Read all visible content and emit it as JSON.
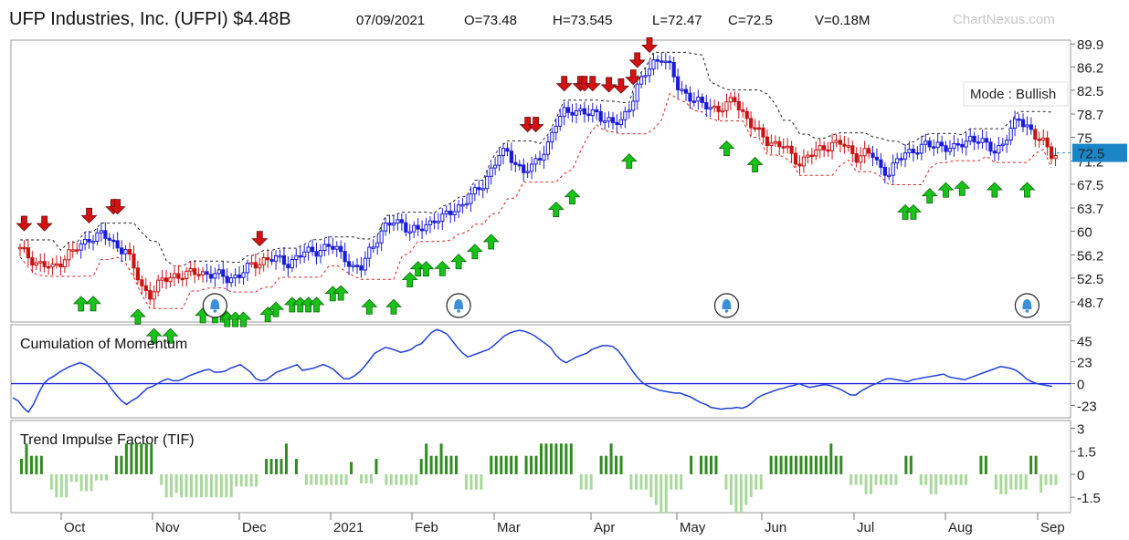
{
  "header": {
    "title": "UFP Industries, Inc. (UFPI) $4.48B",
    "date": "07/09/2021",
    "open": "O=73.48",
    "high": "H=73.545",
    "low": "L=72.47",
    "close": "C=72.5",
    "volume": "V=0.18M",
    "watermark": "ChartNexus.com"
  },
  "colors": {
    "bullish": "#1c1cd6",
    "bearish": "#c81414",
    "up_arrow": "#19c219",
    "down_arrow": "#d41212",
    "tif_strong": "#2e8b1e",
    "tif_light": "#a8d89a",
    "momentum_line": "#1f3fd8",
    "price_tag": "#1a86c8"
  },
  "chart_data": [
    {
      "type": "candlestick",
      "title": "",
      "ylim": [
        45.5,
        90.5
      ],
      "y_ticks": [
        "89.9",
        "86.2",
        "82.5",
        "78.7",
        "75",
        "71.2",
        "67.5",
        "63.7",
        "60",
        "56.2",
        "52.5",
        "48.7"
      ],
      "last_price_label": "72.5",
      "mode_label": "Mode : Bullish",
      "x_months": [
        "Oct",
        "Nov",
        "Dec",
        "2021",
        "Feb",
        "Mar",
        "Apr",
        "May",
        "Jun",
        "Jul",
        "Aug",
        "Sep"
      ],
      "close_path": [
        [
          0,
          57
        ],
        [
          4,
          55
        ],
        [
          8,
          54
        ],
        [
          12,
          56.5
        ],
        [
          15,
          57.5
        ],
        [
          17,
          59
        ],
        [
          20,
          59.5
        ],
        [
          23,
          58
        ],
        [
          26,
          57
        ],
        [
          28,
          54
        ],
        [
          30,
          51
        ],
        [
          32,
          50
        ],
        [
          35,
          52
        ],
        [
          38,
          53
        ],
        [
          41,
          53
        ],
        [
          44,
          53.5
        ],
        [
          48,
          53
        ],
        [
          51,
          52.5
        ],
        [
          54,
          53
        ],
        [
          57,
          54.5
        ],
        [
          60,
          55.5
        ],
        [
          63,
          55.5
        ],
        [
          66,
          55
        ],
        [
          70,
          56.5
        ],
        [
          73,
          57
        ],
        [
          76,
          57.5
        ],
        [
          78,
          57
        ],
        [
          80,
          56
        ],
        [
          82,
          54
        ],
        [
          84,
          54
        ],
        [
          86,
          57
        ],
        [
          88,
          59
        ],
        [
          90,
          60.5
        ],
        [
          92,
          61.5
        ],
        [
          94,
          61.5
        ],
        [
          96,
          60
        ],
        [
          98,
          60
        ],
        [
          100,
          61
        ],
        [
          102,
          62
        ],
        [
          104,
          62
        ],
        [
          106,
          63
        ],
        [
          108,
          64
        ],
        [
          110,
          65
        ],
        [
          112,
          66
        ],
        [
          114,
          67.5
        ],
        [
          116,
          70
        ],
        [
          118,
          72
        ],
        [
          120,
          72.5
        ],
        [
          122,
          71
        ],
        [
          124,
          69.5
        ],
        [
          126,
          70
        ],
        [
          128,
          72
        ],
        [
          130,
          74
        ],
        [
          132,
          77
        ],
        [
          134,
          79
        ],
        [
          136,
          79.5
        ],
        [
          138,
          79
        ],
        [
          140,
          78.5
        ],
        [
          142,
          79
        ],
        [
          144,
          78
        ],
        [
          146,
          77
        ],
        [
          148,
          77.5
        ],
        [
          150,
          80
        ],
        [
          152,
          83
        ],
        [
          154,
          85
        ],
        [
          156,
          87
        ],
        [
          158,
          88
        ],
        [
          160,
          86
        ],
        [
          162,
          83
        ],
        [
          164,
          82
        ],
        [
          166,
          81
        ],
        [
          168,
          80
        ],
        [
          170,
          80
        ],
        [
          172,
          79.5
        ],
        [
          174,
          80
        ],
        [
          176,
          81
        ],
        [
          178,
          79
        ],
        [
          180,
          77
        ],
        [
          182,
          75.5
        ],
        [
          184,
          74.5
        ],
        [
          186,
          74
        ],
        [
          188,
          73.5
        ],
        [
          190,
          72
        ],
        [
          192,
          71
        ],
        [
          194,
          72
        ],
        [
          196,
          72.5
        ],
        [
          198,
          73.5
        ],
        [
          200,
          74
        ],
        [
          202,
          74
        ],
        [
          204,
          73
        ],
        [
          206,
          72
        ],
        [
          208,
          72.5
        ],
        [
          210,
          72
        ],
        [
          212,
          70
        ],
        [
          214,
          69.5
        ],
        [
          216,
          71
        ],
        [
          218,
          72.5
        ],
        [
          220,
          73
        ],
        [
          222,
          73.5
        ],
        [
          224,
          73.5
        ],
        [
          226,
          74
        ],
        [
          228,
          73.5
        ],
        [
          230,
          73
        ],
        [
          232,
          74
        ],
        [
          234,
          75
        ],
        [
          236,
          74.5
        ],
        [
          238,
          73.5
        ],
        [
          240,
          73
        ],
        [
          242,
          74
        ],
        [
          244,
          76
        ],
        [
          246,
          78
        ],
        [
          248,
          77
        ],
        [
          250,
          75
        ],
        [
          252,
          74
        ],
        [
          254,
          72.5
        ]
      ],
      "down_signals": [
        1,
        6,
        17,
        23,
        24,
        59,
        125,
        127,
        134,
        138,
        139,
        141,
        145,
        148,
        151,
        152,
        155
      ],
      "up_signals": [
        15,
        18,
        29,
        33,
        37,
        45,
        48,
        50,
        51,
        53,
        55,
        61,
        63,
        67,
        69,
        71,
        73,
        77,
        79,
        86,
        92,
        96,
        98,
        100,
        104,
        108,
        112,
        116,
        132,
        136,
        150,
        174,
        181,
        218,
        220,
        224,
        228,
        232,
        240,
        248
      ],
      "alerts": [
        48,
        108,
        174,
        248
      ]
    },
    {
      "type": "line",
      "title": "Cumulation of Momentum",
      "y_ticks": [
        "45",
        "23",
        "0",
        "-23"
      ],
      "ylim": [
        -36,
        62
      ],
      "zero_line": 0,
      "values": [
        -15,
        -18,
        -25,
        -30,
        -22,
        -10,
        0,
        5,
        8,
        12,
        15,
        18,
        20,
        22,
        20,
        17,
        12,
        8,
        3,
        -5,
        -12,
        -18,
        -22,
        -18,
        -15,
        -10,
        -5,
        -3,
        0,
        3,
        5,
        3,
        3,
        5,
        8,
        10,
        12,
        14,
        15,
        12,
        12,
        13,
        16,
        18,
        20,
        16,
        12,
        5,
        3,
        4,
        8,
        12,
        14,
        16,
        18,
        20,
        14,
        15,
        16,
        18,
        20,
        18,
        15,
        10,
        5,
        5,
        8,
        12,
        18,
        25,
        32,
        35,
        38,
        37,
        35,
        33,
        34,
        36,
        40,
        42,
        48,
        54,
        57,
        55,
        52,
        45,
        38,
        32,
        28,
        30,
        32,
        34,
        36,
        40,
        45,
        50,
        53,
        55,
        56,
        55,
        53,
        50,
        46,
        42,
        38,
        30,
        25,
        22,
        25,
        28,
        30,
        32,
        36,
        38,
        40,
        40,
        39,
        35,
        28,
        20,
        12,
        5,
        0,
        -3,
        -5,
        -7,
        -8,
        -9,
        -10,
        -10,
        -12,
        -14,
        -17,
        -20,
        -22,
        -25,
        -26,
        -27,
        -26,
        -26,
        -25,
        -26,
        -24,
        -20,
        -15,
        -12,
        -10,
        -8,
        -6,
        -5,
        -3,
        -2,
        0,
        -2,
        -4,
        -3,
        -2,
        -1,
        -2,
        -4,
        -6,
        -9,
        -12,
        -12,
        -8,
        -5,
        -2,
        0,
        3,
        5,
        5,
        4,
        3,
        2,
        4,
        5,
        6,
        7,
        8,
        9,
        10,
        7,
        6,
        5,
        4,
        6,
        8,
        10,
        12,
        14,
        16,
        18,
        17,
        16,
        14,
        10,
        5,
        2,
        0,
        -1,
        -2,
        -3
      ]
    },
    {
      "type": "bar",
      "title": "Trend Impulse Factor (TIF)",
      "y_ticks": [
        "3",
        "1.5",
        "0",
        "-1.5"
      ],
      "ylim": [
        -2.5,
        3.5
      ],
      "values": [
        1,
        2,
        1.2,
        1.2,
        1.2,
        0,
        -1,
        -1.5,
        -1.5,
        -1.5,
        -0.5,
        -0.5,
        -1.1,
        -1.1,
        -1.1,
        -0.4,
        -0.4,
        -0.4,
        0,
        1.2,
        1.2,
        2,
        2,
        2,
        2,
        2,
        2,
        0,
        -0.7,
        -1.5,
        -1.5,
        -1.2,
        -1.5,
        -1.5,
        -1.5,
        -1.5,
        -1.5,
        -1.5,
        -1.5,
        -1.5,
        -1.5,
        -1.5,
        -1.5,
        -0.8,
        -0.8,
        -0.8,
        -0.8,
        -0.8,
        0,
        1,
        1,
        1,
        1,
        2,
        0,
        1,
        0,
        -0.7,
        -0.7,
        -0.7,
        -0.7,
        -0.7,
        -0.7,
        -0.7,
        -0.7,
        -0.7,
        0.8,
        0,
        -0.6,
        -0.6,
        -0.6,
        1,
        0,
        -0.7,
        -0.7,
        -0.7,
        -0.7,
        -0.7,
        -0.7,
        -0.7,
        1,
        2,
        1.2,
        1.2,
        2,
        1.2,
        1.2,
        1.2,
        0,
        -1,
        -1,
        -1,
        -1,
        0,
        1.2,
        1.2,
        1.2,
        1.2,
        1.2,
        1.2,
        0,
        1.2,
        1.2,
        1.2,
        2,
        2,
        2,
        2,
        2,
        2,
        2,
        0,
        -1,
        -1,
        -1,
        0,
        1.2,
        1.2,
        2,
        1.2,
        1.2,
        0,
        -1,
        -1,
        -1,
        -1,
        -1.5,
        -2,
        -2.5,
        -2.5,
        -1,
        -1,
        -1,
        0,
        1.2,
        0,
        1.2,
        1.2,
        1.2,
        1.2,
        0,
        -1,
        -2,
        -2.5,
        -2.5,
        -2,
        -1.5,
        -1,
        -1,
        0,
        1.2,
        1.2,
        1.2,
        1.2,
        1.2,
        1.2,
        1.2,
        1.2,
        1.2,
        1.2,
        1.2,
        1.2,
        2,
        1.2,
        1.2,
        0,
        -0.7,
        -0.7,
        -0.7,
        -1.3,
        -1.3,
        -0.7,
        -0.7,
        -0.7,
        -0.7,
        -0.7,
        0,
        1.2,
        1.2,
        0,
        -0.7,
        -0.7,
        -1.3,
        -1.3,
        -0.7,
        -0.7,
        -0.7,
        -0.7,
        -0.7,
        -0.7,
        0,
        0,
        1.2,
        1.2,
        0,
        -1,
        -1.3,
        -1.3,
        -1,
        -1,
        -1,
        -1,
        1.2,
        1.2,
        -1.2,
        -0.7,
        -0.7,
        -0.7
      ]
    }
  ]
}
